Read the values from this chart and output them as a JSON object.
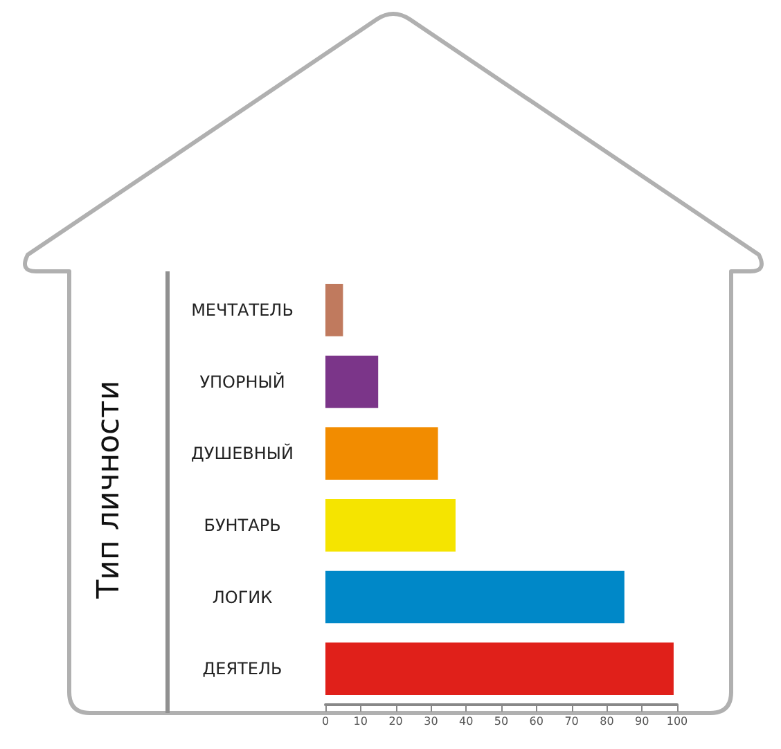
{
  "chart_data": {
    "type": "bar",
    "orientation": "horizontal",
    "ylabel": "Тип личности",
    "categories": [
      "МЕЧТАТЕЛЬ",
      "УПОРНЫЙ",
      "ДУШЕВНЫЙ",
      "БУНТАРЬ",
      "ЛОГИК",
      "ДЕЯТЕЛЬ"
    ],
    "values": [
      5,
      15,
      32,
      37,
      85,
      99
    ],
    "colors": [
      "#c07a5e",
      "#7b3589",
      "#f28c00",
      "#f5e400",
      "#0088c8",
      "#e0201a"
    ],
    "xlim": [
      0,
      100
    ],
    "xticks": [
      0,
      10,
      20,
      30,
      40,
      50,
      60,
      70,
      80,
      90,
      100
    ],
    "grid": false
  }
}
